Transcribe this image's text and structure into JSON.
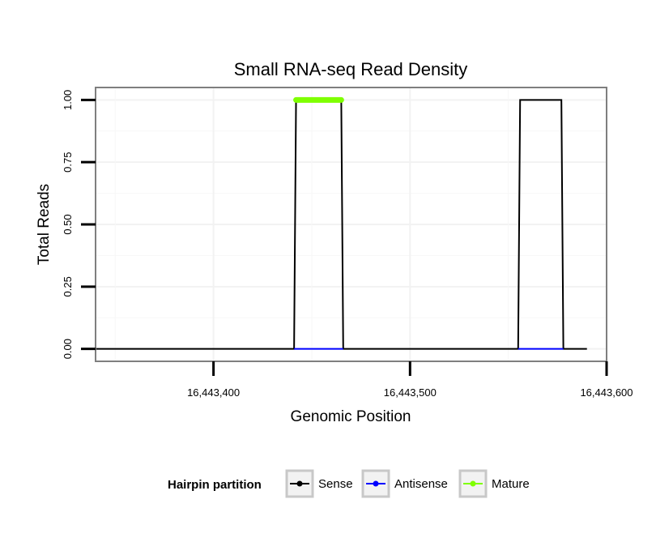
{
  "chart_data": {
    "type": "line",
    "title": "Small RNA-seq Read Density",
    "xlabel": "Genomic Position",
    "ylabel": "Total Reads",
    "xlim": [
      16443340,
      16443600
    ],
    "ylim": [
      -0.05,
      1.05
    ],
    "x_ticks": [
      16443400,
      16443500,
      16443600
    ],
    "x_tick_labels": [
      "16,443,400",
      "16,443,500",
      "16,443,600"
    ],
    "y_ticks": [
      0,
      0.25,
      0.5,
      0.75,
      1.0
    ],
    "y_tick_labels": [
      "0.00",
      "0.25",
      "0.50",
      "0.75",
      "1.00"
    ],
    "legend": {
      "title": "Hairpin partition",
      "position": "bottom",
      "entries": [
        {
          "name": "Sense",
          "color": "#000000"
        },
        {
          "name": "Antisense",
          "color": "#0000ff"
        },
        {
          "name": "Mature",
          "color": "#7fff00"
        }
      ]
    },
    "series": [
      {
        "name": "Sense",
        "color": "#000000",
        "points": [
          [
            16443340,
            0
          ],
          [
            16443441,
            0
          ],
          [
            16443442,
            1
          ],
          [
            16443465,
            1
          ],
          [
            16443466,
            0
          ],
          [
            16443555,
            0
          ],
          [
            16443556,
            1
          ],
          [
            16443577,
            1
          ],
          [
            16443578,
            0
          ],
          [
            16443590,
            0
          ]
        ]
      },
      {
        "name": "Antisense",
        "color": "#0000ff",
        "points": [
          [
            16443441,
            0
          ],
          [
            16443466,
            0
          ],
          [
            16443555,
            0
          ],
          [
            16443578,
            0
          ]
        ]
      },
      {
        "name": "Mature",
        "color": "#7fff00",
        "points": [
          [
            16443442,
            1
          ],
          [
            16443465,
            1
          ]
        ]
      }
    ]
  }
}
